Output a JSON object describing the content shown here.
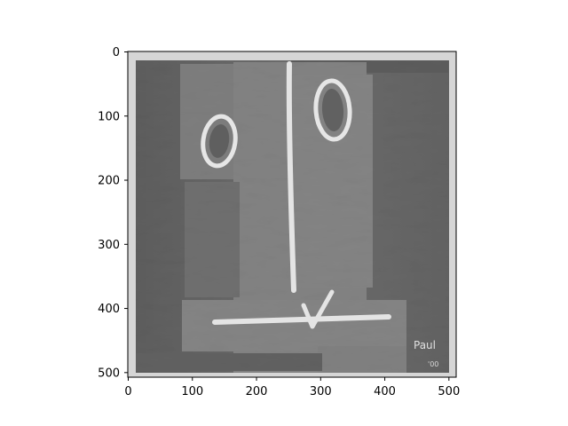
{
  "figure": {
    "x_ticks": [
      "0",
      "100",
      "200",
      "300",
      "400",
      "500"
    ],
    "y_ticks": [
      "0",
      "100",
      "200",
      "300",
      "400",
      "500"
    ]
  },
  "image": {
    "description_kind": "grayscale-relief-artwork",
    "signature_text": "Paul",
    "signature_year": "'00",
    "colors": {
      "background_dark": "#5f5f5f",
      "panel_mid": "#7c7c7c",
      "panel_light": "#8e8e8e",
      "ridge_white": "#e8e8e8",
      "frame_light": "#d9d9d9"
    }
  }
}
